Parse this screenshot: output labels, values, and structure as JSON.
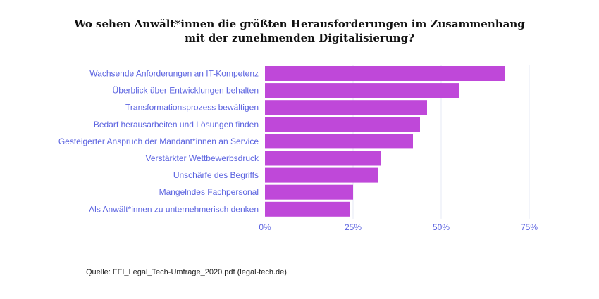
{
  "title_line1": "Wo sehen Anwält*innen die größten Herausforderungen im Zusammenhang",
  "title_line2": "mit der zunehmenden Digitalisierung?",
  "source": "Quelle: FFI_Legal_Tech-Umfrage_2020.pdf (legal-tech.de)",
  "colors": {
    "bar": "#bf48d9",
    "label": "#5b63e0",
    "tick": "#5b63e0",
    "grid": "#e6e8f4"
  },
  "chart_data": {
    "type": "bar",
    "orientation": "horizontal",
    "categories": [
      "Wachsende Anforderungen an IT-Kompetenz",
      "Überblick über Entwicklungen behalten",
      "Transformationsprozess bewältigen",
      "Bedarf herausarbeiten und Lösungen finden",
      "Gesteigerter Anspruch der Mandant*innen an Service",
      "Verstärkter Wettbewerbsdruck",
      "Unschärfe des Begriffs",
      "Mangelndes Fachpersonal",
      "Als Anwält*innen zu unternehmerisch denken"
    ],
    "values": [
      68,
      55,
      46,
      44,
      42,
      33,
      32,
      25,
      24
    ],
    "xlim": [
      0,
      75
    ],
    "xticks": [
      0,
      25,
      50,
      75
    ],
    "xtick_labels": [
      "0%",
      "25%",
      "50%",
      "75%"
    ],
    "grid": true
  }
}
